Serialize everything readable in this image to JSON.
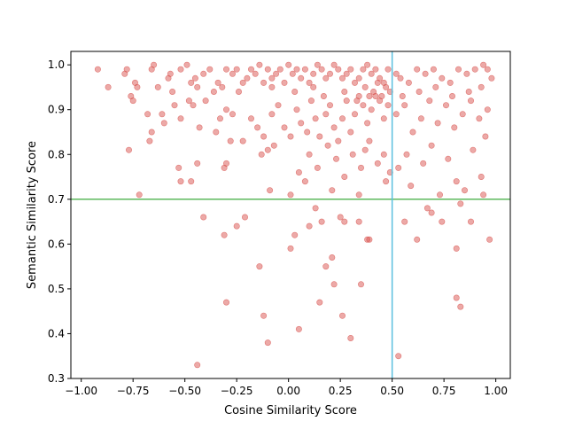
{
  "chart_data": {
    "type": "scatter",
    "title": "",
    "xlabel": "Cosine Similarity Score",
    "ylabel": "Semantic Similarity Score",
    "xlim": [
      -1.05,
      1.07
    ],
    "ylim": [
      0.3,
      1.03
    ],
    "xticks": [
      -1.0,
      -0.75,
      -0.5,
      -0.25,
      0.0,
      0.25,
      0.5,
      0.75,
      1.0
    ],
    "xtick_labels": [
      "−1.00",
      "−0.75",
      "−0.50",
      "−0.25",
      "0.00",
      "0.25",
      "0.50",
      "0.75",
      "1.00"
    ],
    "yticks": [
      0.3,
      0.4,
      0.5,
      0.6,
      0.7,
      0.8,
      0.9,
      1.0
    ],
    "ytick_labels": [
      "0.3",
      "0.4",
      "0.5",
      "0.6",
      "0.7",
      "0.8",
      "0.9",
      "1.0"
    ],
    "grid": false,
    "legend": "none",
    "point_color": "#d9534f",
    "point_opacity": 0.5,
    "threshold_lines": [
      {
        "orientation": "horizontal",
        "value": 0.7,
        "color": "#5cb85c"
      },
      {
        "orientation": "vertical",
        "value": 0.5,
        "color": "#5bc0de"
      }
    ],
    "series": [
      {
        "points": [
          [
            -0.92,
            0.99
          ],
          [
            -0.87,
            0.95
          ],
          [
            -0.79,
            0.98
          ],
          [
            -0.78,
            0.99
          ],
          [
            -0.76,
            0.93
          ],
          [
            -0.75,
            0.92
          ],
          [
            -0.74,
            0.96
          ],
          [
            -0.73,
            0.95
          ],
          [
            -0.66,
            0.99
          ],
          [
            -0.65,
            1.0
          ],
          [
            -0.63,
            0.95
          ],
          [
            -0.58,
            0.97
          ],
          [
            -0.57,
            0.98
          ],
          [
            -0.56,
            0.94
          ],
          [
            -0.52,
            0.99
          ],
          [
            -0.49,
            1.0
          ],
          [
            -0.47,
            0.96
          ],
          [
            -0.45,
            0.97
          ],
          [
            -0.44,
            0.95
          ],
          [
            -0.41,
            0.98
          ],
          [
            -0.38,
            0.99
          ],
          [
            -0.34,
            0.96
          ],
          [
            -0.32,
            0.95
          ],
          [
            -0.3,
            0.99
          ],
          [
            -0.27,
            0.98
          ],
          [
            -0.25,
            0.99
          ],
          [
            -0.22,
            0.96
          ],
          [
            -0.2,
            0.97
          ],
          [
            -0.18,
            0.99
          ],
          [
            -0.16,
            0.98
          ],
          [
            -0.14,
            1.0
          ],
          [
            -0.12,
            0.96
          ],
          [
            -0.1,
            0.99
          ],
          [
            -0.08,
            0.97
          ],
          [
            -0.06,
            0.98
          ],
          [
            -0.04,
            0.99
          ],
          [
            -0.02,
            0.96
          ],
          [
            0.0,
            1.0
          ],
          [
            0.02,
            0.98
          ],
          [
            0.04,
            0.99
          ],
          [
            0.06,
            0.97
          ],
          [
            0.08,
            0.99
          ],
          [
            0.1,
            0.96
          ],
          [
            0.12,
            0.98
          ],
          [
            0.14,
            1.0
          ],
          [
            0.16,
            0.99
          ],
          [
            0.18,
            0.97
          ],
          [
            0.2,
            0.98
          ],
          [
            0.22,
            1.0
          ],
          [
            0.24,
            0.99
          ],
          [
            0.26,
            0.97
          ],
          [
            0.28,
            0.98
          ],
          [
            0.3,
            0.99
          ],
          [
            0.32,
            0.96
          ],
          [
            0.34,
            0.97
          ],
          [
            0.36,
            0.99
          ],
          [
            0.38,
            1.0
          ],
          [
            0.4,
            0.98
          ],
          [
            0.42,
            0.99
          ],
          [
            0.44,
            0.97
          ],
          [
            0.46,
            0.96
          ],
          [
            0.48,
            0.99
          ],
          [
            0.52,
            0.98
          ],
          [
            0.54,
            0.97
          ],
          [
            0.58,
            0.96
          ],
          [
            0.62,
            0.99
          ],
          [
            0.66,
            0.98
          ],
          [
            0.7,
            0.99
          ],
          [
            0.74,
            0.97
          ],
          [
            0.78,
            0.96
          ],
          [
            0.82,
            0.99
          ],
          [
            0.86,
            0.98
          ],
          [
            0.9,
            0.99
          ],
          [
            0.94,
            1.0
          ],
          [
            0.96,
            0.99
          ],
          [
            0.98,
            0.97
          ],
          [
            -0.77,
            0.81
          ],
          [
            -0.68,
            0.89
          ],
          [
            -0.66,
            0.85
          ],
          [
            -0.61,
            0.89
          ],
          [
            -0.6,
            0.87
          ],
          [
            -0.55,
            0.91
          ],
          [
            -0.52,
            0.88
          ],
          [
            -0.48,
            0.92
          ],
          [
            -0.46,
            0.91
          ],
          [
            -0.4,
            0.92
          ],
          [
            -0.35,
            0.85
          ],
          [
            -0.33,
            0.88
          ],
          [
            -0.3,
            0.9
          ],
          [
            -0.27,
            0.89
          ],
          [
            -0.22,
            0.83
          ],
          [
            -0.18,
            0.88
          ],
          [
            -0.15,
            0.86
          ],
          [
            -0.12,
            0.84
          ],
          [
            -0.1,
            0.81
          ],
          [
            -0.08,
            0.89
          ],
          [
            -0.05,
            0.91
          ],
          [
            -0.02,
            0.86
          ],
          [
            0.01,
            0.84
          ],
          [
            0.04,
            0.9
          ],
          [
            0.06,
            0.87
          ],
          [
            0.09,
            0.85
          ],
          [
            0.11,
            0.92
          ],
          [
            0.13,
            0.88
          ],
          [
            0.15,
            0.84
          ],
          [
            0.18,
            0.89
          ],
          [
            0.2,
            0.91
          ],
          [
            0.22,
            0.86
          ],
          [
            0.24,
            0.83
          ],
          [
            0.26,
            0.88
          ],
          [
            0.28,
            0.92
          ],
          [
            0.3,
            0.85
          ],
          [
            0.32,
            0.89
          ],
          [
            0.34,
            0.93
          ],
          [
            0.36,
            0.91
          ],
          [
            0.38,
            0.87
          ],
          [
            0.4,
            0.9
          ],
          [
            0.42,
            0.93
          ],
          [
            0.44,
            0.92
          ],
          [
            0.46,
            0.88
          ],
          [
            0.48,
            0.91
          ],
          [
            0.52,
            0.89
          ],
          [
            0.56,
            0.91
          ],
          [
            0.6,
            0.85
          ],
          [
            0.64,
            0.88
          ],
          [
            0.68,
            0.92
          ],
          [
            0.72,
            0.87
          ],
          [
            0.76,
            0.91
          ],
          [
            0.8,
            0.86
          ],
          [
            0.84,
            0.89
          ],
          [
            0.88,
            0.92
          ],
          [
            0.92,
            0.88
          ],
          [
            0.96,
            0.9
          ],
          [
            -0.36,
            0.94
          ],
          [
            -0.24,
            0.94
          ],
          [
            -0.08,
            0.95
          ],
          [
            0.03,
            0.94
          ],
          [
            0.12,
            0.95
          ],
          [
            0.17,
            0.93
          ],
          [
            0.27,
            0.94
          ],
          [
            0.33,
            0.92
          ],
          [
            0.37,
            0.95
          ],
          [
            0.39,
            0.93
          ],
          [
            0.41,
            0.94
          ],
          [
            0.43,
            0.96
          ],
          [
            0.45,
            0.93
          ],
          [
            0.47,
            0.95
          ],
          [
            0.49,
            0.94
          ],
          [
            0.55,
            0.93
          ],
          [
            0.63,
            0.94
          ],
          [
            0.71,
            0.95
          ],
          [
            0.79,
            0.93
          ],
          [
            0.87,
            0.94
          ],
          [
            0.93,
            0.95
          ],
          [
            -0.67,
            0.83
          ],
          [
            -0.43,
            0.86
          ],
          [
            -0.28,
            0.83
          ],
          [
            -0.13,
            0.8
          ],
          [
            -0.07,
            0.82
          ],
          [
            0.05,
            0.76
          ],
          [
            0.1,
            0.8
          ],
          [
            0.14,
            0.77
          ],
          [
            0.19,
            0.82
          ],
          [
            0.23,
            0.79
          ],
          [
            0.27,
            0.75
          ],
          [
            0.31,
            0.8
          ],
          [
            0.35,
            0.77
          ],
          [
            0.37,
            0.81
          ],
          [
            0.39,
            0.83
          ],
          [
            0.43,
            0.78
          ],
          [
            0.46,
            0.8
          ],
          [
            0.47,
            0.74
          ],
          [
            0.49,
            0.76
          ],
          [
            0.53,
            0.77
          ],
          [
            0.57,
            0.8
          ],
          [
            0.59,
            0.73
          ],
          [
            0.65,
            0.78
          ],
          [
            0.69,
            0.82
          ],
          [
            0.73,
            0.71
          ],
          [
            0.77,
            0.79
          ],
          [
            0.81,
            0.74
          ],
          [
            0.85,
            0.72
          ],
          [
            0.89,
            0.81
          ],
          [
            0.93,
            0.75
          ],
          [
            0.95,
            0.84
          ],
          [
            -0.72,
            0.71
          ],
          [
            -0.53,
            0.77
          ],
          [
            -0.52,
            0.74
          ],
          [
            -0.47,
            0.74
          ],
          [
            -0.44,
            0.78
          ],
          [
            -0.31,
            0.77
          ],
          [
            -0.3,
            0.78
          ],
          [
            -0.09,
            0.72
          ],
          [
            0.01,
            0.71
          ],
          [
            0.08,
            0.74
          ],
          [
            0.21,
            0.72
          ],
          [
            0.34,
            0.71
          ],
          [
            0.94,
            0.71
          ],
          [
            -0.41,
            0.66
          ],
          [
            -0.25,
            0.64
          ],
          [
            -0.21,
            0.66
          ],
          [
            -0.31,
            0.62
          ],
          [
            0.03,
            0.62
          ],
          [
            0.01,
            0.59
          ],
          [
            0.1,
            0.64
          ],
          [
            0.13,
            0.68
          ],
          [
            0.16,
            0.65
          ],
          [
            0.25,
            0.66
          ],
          [
            0.27,
            0.65
          ],
          [
            0.34,
            0.65
          ],
          [
            0.38,
            0.61
          ],
          [
            0.39,
            0.61
          ],
          [
            0.56,
            0.65
          ],
          [
            0.62,
            0.61
          ],
          [
            0.67,
            0.68
          ],
          [
            0.69,
            0.67
          ],
          [
            0.74,
            0.65
          ],
          [
            0.81,
            0.59
          ],
          [
            0.83,
            0.69
          ],
          [
            0.88,
            0.65
          ],
          [
            0.97,
            0.61
          ],
          [
            -0.14,
            0.55
          ],
          [
            -0.3,
            0.47
          ],
          [
            -0.12,
            0.44
          ],
          [
            -0.1,
            0.38
          ],
          [
            0.05,
            0.41
          ],
          [
            0.15,
            0.47
          ],
          [
            0.18,
            0.55
          ],
          [
            0.21,
            0.57
          ],
          [
            0.22,
            0.51
          ],
          [
            0.26,
            0.44
          ],
          [
            0.3,
            0.39
          ],
          [
            0.35,
            0.51
          ],
          [
            0.81,
            0.48
          ],
          [
            0.83,
            0.46
          ],
          [
            -0.44,
            0.33
          ],
          [
            0.53,
            0.35
          ]
        ]
      }
    ]
  }
}
